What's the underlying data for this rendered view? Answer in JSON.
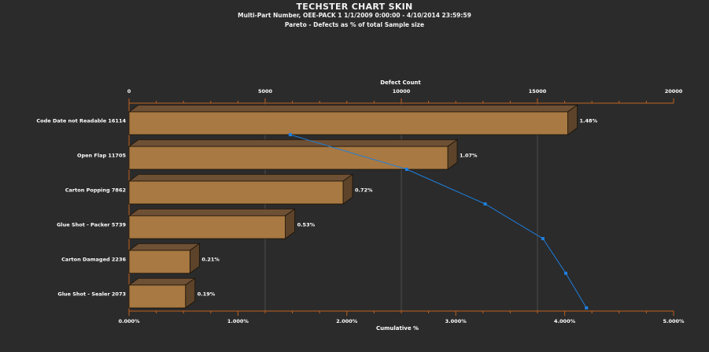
{
  "header": {
    "title": "TECHSTER CHART SKIN",
    "subtitle": "Multi-Part Number, OEE-PACK 1   1/1/2009 0:00:00 - 4/10/2014 23:59:59",
    "subtitle2": "Pareto - Defects as % of total Sample size"
  },
  "chart_data": {
    "type": "bar",
    "orientation": "horizontal",
    "title": "Pareto - Defects as % of total Sample size",
    "top_axis": {
      "label": "Defect Count",
      "range": [
        0,
        20000
      ],
      "ticks": [
        "0",
        "5000",
        "10000",
        "15000",
        "20000"
      ]
    },
    "bottom_axis": {
      "label": "Cumulative %",
      "range": [
        0,
        5
      ],
      "ticks": [
        "0.000%",
        "1.000%",
        "2.000%",
        "3.000%",
        "4.000%",
        "5.000%"
      ]
    },
    "categories": [
      "Code Date not Readable",
      "Open Flap",
      "Carton Popping",
      "Glue Shot - Packer",
      "Carton Damaged",
      "Glue Shot - Sealer"
    ],
    "category_labels": [
      "Code Date not Readable  16114",
      "Open Flap  11705",
      "Carton Popping  7862",
      "Glue Shot - Packer  5739",
      "Carton Damaged  2236",
      "Glue Shot - Sealer  2073"
    ],
    "series": [
      {
        "name": "Defect Count",
        "values": [
          16114,
          11705,
          7862,
          5739,
          2236,
          2073
        ]
      },
      {
        "name": "Cumulative %",
        "values": [
          1.48,
          2.55,
          3.27,
          3.8,
          4.01,
          4.2
        ]
      }
    ],
    "bar_labels": [
      "1.48%",
      "1.07%",
      "0.72%",
      "0.53%",
      "0.21%",
      "0.19%"
    ],
    "colors": {
      "background": "#2b2b2b",
      "bar_front": "#a87942",
      "bar_top": "#6e5035",
      "bar_side": "#5c4329",
      "axis": "#c0621e",
      "line": "#1e7fe0",
      "grid": "#555555"
    }
  }
}
